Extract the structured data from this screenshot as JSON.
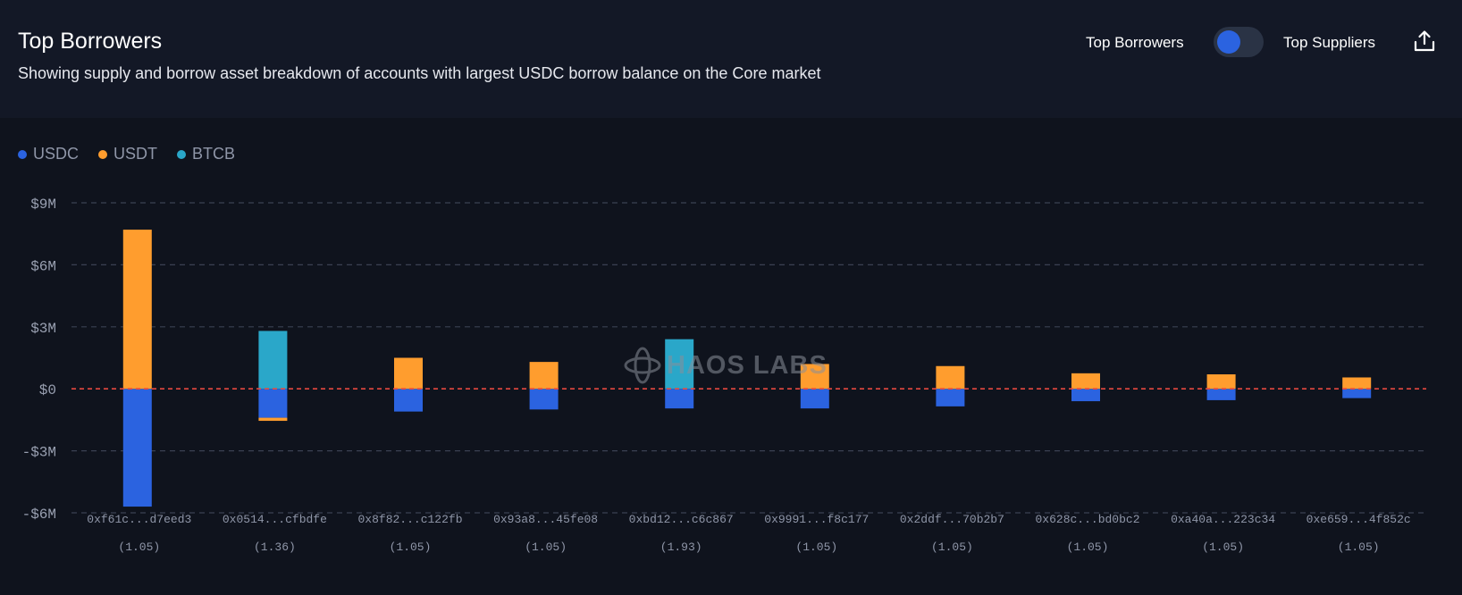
{
  "header": {
    "title": "Top Borrowers",
    "subtitle": "Showing supply and borrow asset breakdown of accounts with largest USDC borrow balance on the Core market",
    "toggle_left_label": "Top Borrowers",
    "toggle_right_label": "Top Suppliers",
    "toggle_state": "Top Borrowers",
    "share_icon": "share-icon"
  },
  "legend": [
    {
      "label": "USDC",
      "color": "#2b63e0"
    },
    {
      "label": "USDT",
      "color": "#ff9d2e"
    },
    {
      "label": "BTCB",
      "color": "#2aa7c9"
    }
  ],
  "watermark": {
    "text": "HAOS LABS",
    "icon": "chaos-labs-logo-icon"
  },
  "chart_data": {
    "type": "bar",
    "stacked": true,
    "title": "Top Borrowers",
    "categories": [
      "0xf61c...d7eed3",
      "0x0514...cfbdfe",
      "0x8f82...c122fb",
      "0x93a8...45fe08",
      "0xbd12...c6c867",
      "0x9991...f8c177",
      "0x2ddf...70b2b7",
      "0x628c...bd0bc2",
      "0xa40a...223c34",
      "0xe659...4f852c"
    ],
    "sublabels": [
      "(1.05)",
      "(1.36)",
      "(1.05)",
      "(1.05)",
      "(1.93)",
      "(1.05)",
      "(1.05)",
      "(1.05)",
      "(1.05)",
      "(1.05)"
    ],
    "series": [
      {
        "name": "USDC",
        "color": "#2b63e0",
        "values": [
          -5.7,
          -1.4,
          -1.1,
          -1.0,
          -0.95,
          -0.95,
          -0.85,
          -0.6,
          -0.55,
          -0.45
        ]
      },
      {
        "name": "USDT",
        "color": "#ff9d2e",
        "values": [
          7.7,
          -0.15,
          1.5,
          1.3,
          0,
          1.2,
          1.1,
          0.75,
          0.7,
          0.55
        ]
      },
      {
        "name": "BTCB",
        "color": "#2aa7c9",
        "values": [
          0,
          2.8,
          0,
          0,
          2.4,
          0,
          0,
          0,
          0,
          0
        ]
      }
    ],
    "yticks": [
      9,
      6,
      3,
      0,
      -3,
      -6
    ],
    "ytick_labels": [
      "$9M",
      "$6M",
      "$3M",
      "$0",
      "-$3M",
      "-$6M"
    ],
    "ylim": [
      -6,
      9
    ],
    "unit": "$M",
    "grid": true,
    "zero_line_color": "#e5483f"
  }
}
